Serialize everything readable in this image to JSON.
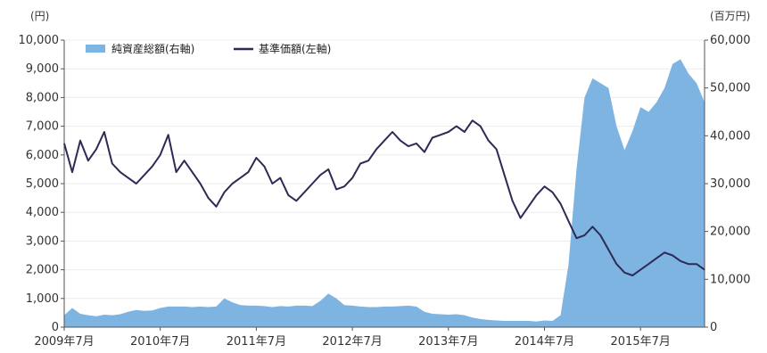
{
  "chart_data": {
    "type": "area",
    "y_left_unit": "(円)",
    "y_right_unit": "(百万円)",
    "y_left_ticks": [
      "10,000",
      "9,000",
      "8,000",
      "7,000",
      "6,000",
      "5,000",
      "4,000",
      "3,000",
      "2,000",
      "1,000",
      "0"
    ],
    "y_right_ticks": [
      "60,000",
      "50,000",
      "40,000",
      "30,000",
      "20,000",
      "10,000",
      "0"
    ],
    "x_tick_labels": [
      "2009年7月",
      "2010年7月",
      "2011年7月",
      "2012年7月",
      "2013年7月",
      "2014年7月",
      "2015年7月"
    ],
    "ylim_left": [
      0,
      10000
    ],
    "ylim_right": [
      0,
      60000
    ],
    "x_start": "2009-07",
    "x_end": "2016-03",
    "colors": {
      "net_assets": "#7eb4e2",
      "nav": "#2d2b55"
    },
    "legend": [
      {
        "label": "純資産総額(右軸)",
        "series": "net_assets",
        "marker": "box"
      },
      {
        "label": "基準価額(左軸)",
        "series": "nav",
        "marker": "line"
      }
    ],
    "series": [
      {
        "key": "net_assets",
        "name": "純資産総額(右軸)",
        "axis": "right",
        "style": "area",
        "x": [
          "2009-07",
          "2009-08",
          "2009-09",
          "2009-10",
          "2009-11",
          "2009-12",
          "2010-01",
          "2010-02",
          "2010-03",
          "2010-04",
          "2010-05",
          "2010-06",
          "2010-07",
          "2010-08",
          "2010-09",
          "2010-10",
          "2010-11",
          "2010-12",
          "2011-01",
          "2011-02",
          "2011-03",
          "2011-04",
          "2011-05",
          "2011-06",
          "2011-07",
          "2011-08",
          "2011-09",
          "2011-10",
          "2011-11",
          "2011-12",
          "2012-01",
          "2012-02",
          "2012-03",
          "2012-04",
          "2012-05",
          "2012-06",
          "2012-07",
          "2012-08",
          "2012-09",
          "2012-10",
          "2012-11",
          "2012-12",
          "2013-01",
          "2013-02",
          "2013-03",
          "2013-04",
          "2013-05",
          "2013-06",
          "2013-07",
          "2013-08",
          "2013-09",
          "2013-10",
          "2013-11",
          "2013-12",
          "2014-01",
          "2014-02",
          "2014-03",
          "2014-04",
          "2014-05",
          "2014-06",
          "2014-07",
          "2014-08",
          "2014-09",
          "2014-10",
          "2014-11",
          "2014-12",
          "2015-01",
          "2015-02",
          "2015-03",
          "2015-04",
          "2015-05",
          "2015-06",
          "2015-07",
          "2015-08",
          "2015-09",
          "2015-10",
          "2015-11",
          "2015-12",
          "2016-01",
          "2016-02",
          "2016-03"
        ],
        "values": [
          2500,
          4000,
          2800,
          2500,
          2300,
          2600,
          2500,
          2700,
          3200,
          3600,
          3400,
          3500,
          4000,
          4300,
          4300,
          4300,
          4200,
          4300,
          4200,
          4300,
          6000,
          5200,
          4600,
          4500,
          4500,
          4400,
          4200,
          4400,
          4300,
          4500,
          4500,
          4400,
          5500,
          7000,
          6000,
          4600,
          4500,
          4300,
          4200,
          4200,
          4300,
          4300,
          4400,
          4500,
          4300,
          3200,
          2800,
          2700,
          2600,
          2700,
          2500,
          2000,
          1700,
          1500,
          1400,
          1300,
          1300,
          1300,
          1300,
          1200,
          1400,
          1300,
          2500,
          13000,
          33000,
          48000,
          52000,
          51000,
          50000,
          42000,
          37000,
          41000,
          46000,
          45000,
          47000,
          50000,
          55000,
          56000,
          53000,
          51000,
          47000
        ]
      },
      {
        "key": "nav",
        "name": "基準価額(左軸)",
        "axis": "left",
        "style": "line",
        "x": [
          "2009-07",
          "2009-08",
          "2009-09",
          "2009-10",
          "2009-11",
          "2009-12",
          "2010-01",
          "2010-02",
          "2010-03",
          "2010-04",
          "2010-05",
          "2010-06",
          "2010-07",
          "2010-08",
          "2010-09",
          "2010-10",
          "2010-11",
          "2010-12",
          "2011-01",
          "2011-02",
          "2011-03",
          "2011-04",
          "2011-05",
          "2011-06",
          "2011-07",
          "2011-08",
          "2011-09",
          "2011-10",
          "2011-11",
          "2011-12",
          "2012-01",
          "2012-02",
          "2012-03",
          "2012-04",
          "2012-05",
          "2012-06",
          "2012-07",
          "2012-08",
          "2012-09",
          "2012-10",
          "2012-11",
          "2012-12",
          "2013-01",
          "2013-02",
          "2013-03",
          "2013-04",
          "2013-05",
          "2013-06",
          "2013-07",
          "2013-08",
          "2013-09",
          "2013-10",
          "2013-11",
          "2013-12",
          "2014-01",
          "2014-02",
          "2014-03",
          "2014-04",
          "2014-05",
          "2014-06",
          "2014-07",
          "2014-08",
          "2014-09",
          "2014-10",
          "2014-11",
          "2014-12",
          "2015-01",
          "2015-02",
          "2015-03",
          "2015-04",
          "2015-05",
          "2015-06",
          "2015-07",
          "2015-08",
          "2015-09",
          "2015-10",
          "2015-11",
          "2015-12",
          "2016-01",
          "2016-02",
          "2016-03"
        ],
        "values": [
          6400,
          5400,
          6500,
          5800,
          6200,
          6800,
          5700,
          5400,
          5200,
          5000,
          5300,
          5600,
          6000,
          6700,
          5400,
          5800,
          5400,
          5000,
          4500,
          4200,
          4700,
          5000,
          5200,
          5400,
          5900,
          5600,
          5000,
          5200,
          4600,
          4400,
          4700,
          5000,
          5300,
          5500,
          4800,
          4900,
          5200,
          5700,
          5800,
          6200,
          6500,
          6800,
          6500,
          6300,
          6400,
          6100,
          6600,
          6700,
          6800,
          7000,
          6800,
          7200,
          7000,
          6500,
          6200,
          5300,
          4400,
          3800,
          4200,
          4600,
          4900,
          4700,
          4300,
          3700,
          3100,
          3200,
          3500,
          3200,
          2700,
          2200,
          1900,
          1800,
          2000,
          2200,
          2400,
          2600,
          2500,
          2300,
          2200,
          2200,
          2000
        ]
      }
    ]
  }
}
